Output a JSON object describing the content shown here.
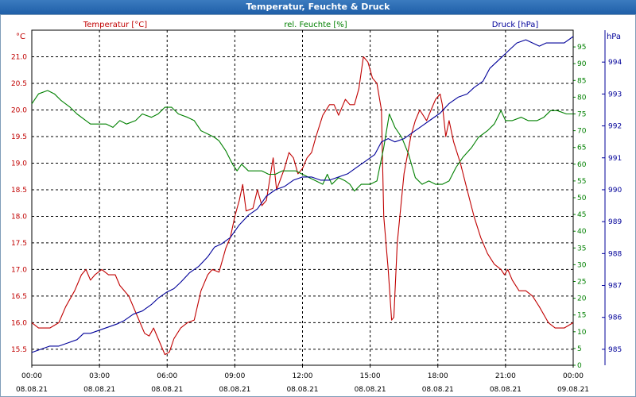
{
  "window": {
    "title": "Temperatur, Feuchte & Druck"
  },
  "colors": {
    "temperature": "#c00000",
    "humidity": "#008000",
    "pressure": "#000099",
    "grid": "#000000",
    "titlebar": "#2a6cb3"
  },
  "chart_data": {
    "type": "line",
    "title": "Temperatur, Feuchte & Druck",
    "grid": true,
    "x_ticks": [
      {
        "time": "00:00",
        "date": "08.08.21",
        "hour": 0
      },
      {
        "time": "03:00",
        "date": "08.08.21",
        "hour": 3
      },
      {
        "time": "06:00",
        "date": "08.08.21",
        "hour": 6
      },
      {
        "time": "09:00",
        "date": "08.08.21",
        "hour": 9
      },
      {
        "time": "12:00",
        "date": "08.08.21",
        "hour": 12
      },
      {
        "time": "15:00",
        "date": "08.08.21",
        "hour": 15
      },
      {
        "time": "18:00",
        "date": "08.08.21",
        "hour": 18
      },
      {
        "time": "21:00",
        "date": "08.08.21",
        "hour": 21
      },
      {
        "time": "00:00",
        "date": "09.08.21",
        "hour": 24
      }
    ],
    "axes": {
      "temperature": {
        "label": "Temperatur [°C]",
        "unit": "°C",
        "range": [
          15.2,
          21.5
        ],
        "ticks": [
          "15.5",
          "16.0",
          "16.5",
          "17.0",
          "17.5",
          "18.0",
          "18.5",
          "19.0",
          "19.5",
          "20.0",
          "20.5",
          "21.0"
        ]
      },
      "humidity": {
        "label": "rel. Feuchte [%]",
        "unit": "%",
        "range": [
          0,
          100
        ],
        "ticks": [
          "0",
          "5",
          "10",
          "15",
          "20",
          "25",
          "30",
          "35",
          "40",
          "45",
          "50",
          "55",
          "60",
          "65",
          "70",
          "75",
          "80",
          "85",
          "90",
          "95"
        ]
      },
      "pressure": {
        "label": "Druck [hPa]",
        "unit": "hPa",
        "range": [
          984.5,
          995
        ],
        "ticks": [
          "985",
          "986",
          "987",
          "988",
          "989",
          "990",
          "991",
          "992",
          "993",
          "994"
        ]
      }
    },
    "series": [
      {
        "name": "Temperatur [°C]",
        "axis": "temperature",
        "points": [
          [
            0,
            16.0
          ],
          [
            0.3,
            15.9
          ],
          [
            0.8,
            15.9
          ],
          [
            1.2,
            16.0
          ],
          [
            1.5,
            16.3
          ],
          [
            1.9,
            16.6
          ],
          [
            2.2,
            16.9
          ],
          [
            2.4,
            17.0
          ],
          [
            2.6,
            16.8
          ],
          [
            2.8,
            16.9
          ],
          [
            3.1,
            17.0
          ],
          [
            3.4,
            16.9
          ],
          [
            3.7,
            16.9
          ],
          [
            3.9,
            16.7
          ],
          [
            4.3,
            16.5
          ],
          [
            4.6,
            16.2
          ],
          [
            4.8,
            16.0
          ],
          [
            5.0,
            15.8
          ],
          [
            5.2,
            15.75
          ],
          [
            5.4,
            15.9
          ],
          [
            5.6,
            15.7
          ],
          [
            5.8,
            15.5
          ],
          [
            5.9,
            15.4
          ],
          [
            6.1,
            15.45
          ],
          [
            6.3,
            15.7
          ],
          [
            6.6,
            15.9
          ],
          [
            6.9,
            16.0
          ],
          [
            7.2,
            16.05
          ],
          [
            7.5,
            16.6
          ],
          [
            7.8,
            16.9
          ],
          [
            8.0,
            17.0
          ],
          [
            8.3,
            16.95
          ],
          [
            8.6,
            17.4
          ],
          [
            8.8,
            17.6
          ],
          [
            9.0,
            18.0
          ],
          [
            9.2,
            18.3
          ],
          [
            9.35,
            18.6
          ],
          [
            9.5,
            18.1
          ],
          [
            9.8,
            18.15
          ],
          [
            10.0,
            18.5
          ],
          [
            10.2,
            18.2
          ],
          [
            10.4,
            18.3
          ],
          [
            10.7,
            19.1
          ],
          [
            10.85,
            18.5
          ],
          [
            11.2,
            18.9
          ],
          [
            11.4,
            19.2
          ],
          [
            11.6,
            19.1
          ],
          [
            11.8,
            18.8
          ],
          [
            12.0,
            18.9
          ],
          [
            12.2,
            19.1
          ],
          [
            12.4,
            19.2
          ],
          [
            12.6,
            19.5
          ],
          [
            12.9,
            19.9
          ],
          [
            13.2,
            20.1
          ],
          [
            13.4,
            20.1
          ],
          [
            13.6,
            19.9
          ],
          [
            13.9,
            20.2
          ],
          [
            14.1,
            20.1
          ],
          [
            14.3,
            20.1
          ],
          [
            14.5,
            20.4
          ],
          [
            14.7,
            21.0
          ],
          [
            14.9,
            20.9
          ],
          [
            15.1,
            20.6
          ],
          [
            15.3,
            20.5
          ],
          [
            15.5,
            20.0
          ],
          [
            15.6,
            18.0
          ],
          [
            15.8,
            17.0
          ],
          [
            15.95,
            16.05
          ],
          [
            16.05,
            16.1
          ],
          [
            16.2,
            17.5
          ],
          [
            16.5,
            18.8
          ],
          [
            16.8,
            19.5
          ],
          [
            17.0,
            19.8
          ],
          [
            17.2,
            20.0
          ],
          [
            17.5,
            19.8
          ],
          [
            17.7,
            20.0
          ],
          [
            17.9,
            20.2
          ],
          [
            18.1,
            20.3
          ],
          [
            18.2,
            20.1
          ],
          [
            18.35,
            19.5
          ],
          [
            18.5,
            19.8
          ],
          [
            18.7,
            19.4
          ],
          [
            19.0,
            19.0
          ],
          [
            19.3,
            18.5
          ],
          [
            19.6,
            18.0
          ],
          [
            19.9,
            17.6
          ],
          [
            20.2,
            17.3
          ],
          [
            20.5,
            17.1
          ],
          [
            20.8,
            17.0
          ],
          [
            20.95,
            16.9
          ],
          [
            21.1,
            17.0
          ],
          [
            21.3,
            16.8
          ],
          [
            21.6,
            16.6
          ],
          [
            21.9,
            16.6
          ],
          [
            22.2,
            16.5
          ],
          [
            22.5,
            16.3
          ],
          [
            22.9,
            16.0
          ],
          [
            23.2,
            15.9
          ],
          [
            23.6,
            15.9
          ],
          [
            24.0,
            16.0
          ]
        ]
      },
      {
        "name": "rel. Feuchte [%]",
        "axis": "humidity",
        "points": [
          [
            0,
            78
          ],
          [
            0.3,
            81
          ],
          [
            0.7,
            82
          ],
          [
            1.0,
            81
          ],
          [
            1.3,
            79
          ],
          [
            1.7,
            77
          ],
          [
            2.0,
            75
          ],
          [
            2.4,
            73
          ],
          [
            2.6,
            72
          ],
          [
            3.0,
            72
          ],
          [
            3.3,
            72
          ],
          [
            3.6,
            71
          ],
          [
            3.9,
            73
          ],
          [
            4.2,
            72
          ],
          [
            4.6,
            73
          ],
          [
            4.9,
            75
          ],
          [
            5.3,
            74
          ],
          [
            5.6,
            75
          ],
          [
            5.9,
            77
          ],
          [
            6.2,
            77
          ],
          [
            6.5,
            75
          ],
          [
            6.9,
            74
          ],
          [
            7.2,
            73
          ],
          [
            7.5,
            70
          ],
          [
            7.8,
            69
          ],
          [
            8.1,
            68
          ],
          [
            8.3,
            67
          ],
          [
            8.6,
            64
          ],
          [
            8.9,
            60
          ],
          [
            9.1,
            58
          ],
          [
            9.3,
            60
          ],
          [
            9.6,
            58
          ],
          [
            9.9,
            58
          ],
          [
            10.2,
            58
          ],
          [
            10.5,
            57
          ],
          [
            10.8,
            57
          ],
          [
            11.1,
            58
          ],
          [
            11.4,
            58
          ],
          [
            11.7,
            58
          ],
          [
            12.0,
            57
          ],
          [
            12.3,
            56
          ],
          [
            12.6,
            55
          ],
          [
            12.9,
            54
          ],
          [
            13.1,
            57
          ],
          [
            13.3,
            54
          ],
          [
            13.6,
            56
          ],
          [
            13.9,
            55
          ],
          [
            14.1,
            54
          ],
          [
            14.3,
            52
          ],
          [
            14.6,
            54
          ],
          [
            15.0,
            54
          ],
          [
            15.3,
            55
          ],
          [
            15.6,
            65
          ],
          [
            15.85,
            75
          ],
          [
            16.1,
            71
          ],
          [
            16.4,
            68
          ],
          [
            16.7,
            63
          ],
          [
            17.0,
            56
          ],
          [
            17.3,
            54
          ],
          [
            17.6,
            55
          ],
          [
            17.9,
            54
          ],
          [
            18.2,
            54
          ],
          [
            18.5,
            55
          ],
          [
            18.8,
            59
          ],
          [
            19.1,
            62
          ],
          [
            19.5,
            65
          ],
          [
            19.8,
            68
          ],
          [
            20.2,
            70
          ],
          [
            20.5,
            72
          ],
          [
            20.8,
            76
          ],
          [
            21.0,
            73
          ],
          [
            21.3,
            73
          ],
          [
            21.7,
            74
          ],
          [
            22.0,
            73
          ],
          [
            22.4,
            73
          ],
          [
            22.7,
            74
          ],
          [
            23.0,
            76
          ],
          [
            23.3,
            76
          ],
          [
            23.7,
            75
          ],
          [
            24.0,
            75
          ]
        ]
      },
      {
        "name": "Druck [hPa]",
        "axis": "pressure",
        "points": [
          [
            0,
            984.9
          ],
          [
            0.4,
            985.0
          ],
          [
            0.8,
            985.1
          ],
          [
            1.2,
            985.1
          ],
          [
            1.6,
            985.2
          ],
          [
            2.0,
            985.3
          ],
          [
            2.3,
            985.5
          ],
          [
            2.6,
            985.5
          ],
          [
            3.0,
            985.6
          ],
          [
            3.4,
            985.7
          ],
          [
            3.8,
            985.8
          ],
          [
            4.1,
            985.9
          ],
          [
            4.5,
            986.1
          ],
          [
            4.9,
            986.2
          ],
          [
            5.3,
            986.4
          ],
          [
            5.6,
            986.6
          ],
          [
            6.0,
            986.8
          ],
          [
            6.3,
            986.9
          ],
          [
            6.6,
            987.1
          ],
          [
            7.0,
            987.4
          ],
          [
            7.4,
            987.6
          ],
          [
            7.8,
            987.9
          ],
          [
            8.1,
            988.2
          ],
          [
            8.4,
            988.3
          ],
          [
            8.8,
            988.5
          ],
          [
            9.2,
            988.9
          ],
          [
            9.6,
            989.2
          ],
          [
            10.0,
            989.4
          ],
          [
            10.4,
            989.8
          ],
          [
            10.8,
            990.0
          ],
          [
            11.2,
            990.1
          ],
          [
            11.6,
            990.3
          ],
          [
            12.0,
            990.4
          ],
          [
            12.4,
            990.4
          ],
          [
            12.8,
            990.3
          ],
          [
            13.2,
            990.3
          ],
          [
            13.6,
            990.4
          ],
          [
            14.0,
            990.5
          ],
          [
            14.4,
            990.7
          ],
          [
            14.8,
            990.9
          ],
          [
            15.2,
            991.1
          ],
          [
            15.5,
            991.5
          ],
          [
            15.8,
            991.6
          ],
          [
            16.1,
            991.5
          ],
          [
            16.5,
            991.6
          ],
          [
            16.9,
            991.8
          ],
          [
            17.3,
            992.0
          ],
          [
            17.7,
            992.2
          ],
          [
            18.1,
            992.4
          ],
          [
            18.5,
            992.7
          ],
          [
            18.9,
            992.9
          ],
          [
            19.3,
            993.0
          ],
          [
            19.6,
            993.2
          ],
          [
            20.0,
            993.4
          ],
          [
            20.3,
            993.8
          ],
          [
            20.6,
            994.0
          ],
          [
            20.9,
            994.2
          ],
          [
            21.2,
            994.4
          ],
          [
            21.5,
            994.6
          ],
          [
            21.9,
            994.7
          ],
          [
            22.2,
            994.6
          ],
          [
            22.5,
            994.5
          ],
          [
            22.8,
            994.6
          ],
          [
            23.2,
            994.6
          ],
          [
            23.6,
            994.6
          ],
          [
            24.0,
            994.8
          ]
        ]
      }
    ]
  }
}
